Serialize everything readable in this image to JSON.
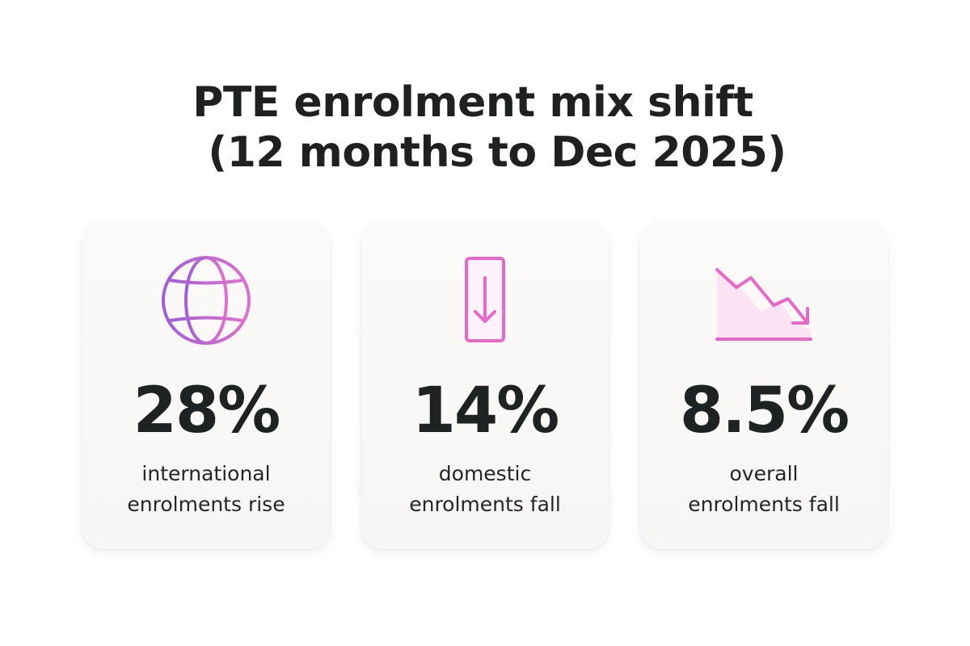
{
  "title": {
    "line1": "PTE enrolment mix shift",
    "line2": "(12 months to Dec 2025)"
  },
  "colors": {
    "globe": "#b064d8",
    "pink": "#e668c8",
    "pink_fill": "#fbe6f5",
    "text": "#1e2222"
  },
  "cards": [
    {
      "icon": "globe-icon",
      "value": "28%",
      "label_line1": "international",
      "label_line2": "enrolments rise"
    },
    {
      "icon": "download-arrow-icon",
      "value": "14%",
      "label_line1": "domestic",
      "label_line2": "enrolments fall"
    },
    {
      "icon": "trending-down-icon",
      "value": "8.5%",
      "label_line1": "overall",
      "label_line2": "enrolments fall"
    }
  ]
}
